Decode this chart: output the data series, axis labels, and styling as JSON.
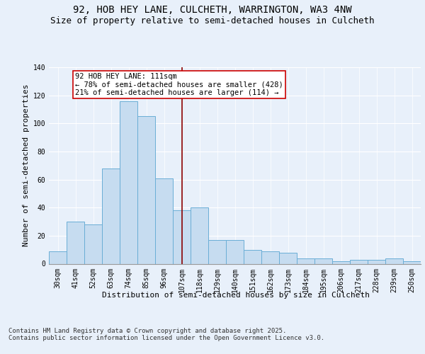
{
  "title1": "92, HOB HEY LANE, CULCHETH, WARRINGTON, WA3 4NW",
  "title2": "Size of property relative to semi-detached houses in Culcheth",
  "xlabel": "Distribution of semi-detached houses by size in Culcheth",
  "ylabel": "Number of semi-detached properties",
  "categories": [
    "30sqm",
    "41sqm",
    "52sqm",
    "63sqm",
    "74sqm",
    "85sqm",
    "96sqm",
    "107sqm",
    "118sqm",
    "129sqm",
    "140sqm",
    "151sqm",
    "162sqm",
    "173sqm",
    "184sqm",
    "195sqm",
    "206sqm",
    "217sqm",
    "228sqm",
    "239sqm",
    "250sqm"
  ],
  "values": [
    9,
    30,
    28,
    68,
    116,
    105,
    61,
    38,
    40,
    17,
    17,
    10,
    9,
    8,
    4,
    4,
    2,
    3,
    3,
    4,
    2
  ],
  "bar_color": "#c6dcf0",
  "bar_edge_color": "#6aaed6",
  "bg_color": "#e8f0fa",
  "grid_color": "#ffffff",
  "vline_x_index": 7,
  "vline_color": "#8b0000",
  "annotation_text": "92 HOB HEY LANE: 111sqm\n← 78% of semi-detached houses are smaller (428)\n21% of semi-detached houses are larger (114) →",
  "annotation_box_facecolor": "#ffffff",
  "annotation_border_color": "#cc0000",
  "ylim": [
    0,
    140
  ],
  "yticks": [
    0,
    20,
    40,
    60,
    80,
    100,
    120,
    140
  ],
  "footnote": "Contains HM Land Registry data © Crown copyright and database right 2025.\nContains public sector information licensed under the Open Government Licence v3.0.",
  "title_fontsize": 10,
  "subtitle_fontsize": 9,
  "axis_label_fontsize": 8,
  "tick_fontsize": 7,
  "annot_fontsize": 7.5,
  "footnote_fontsize": 6.5
}
